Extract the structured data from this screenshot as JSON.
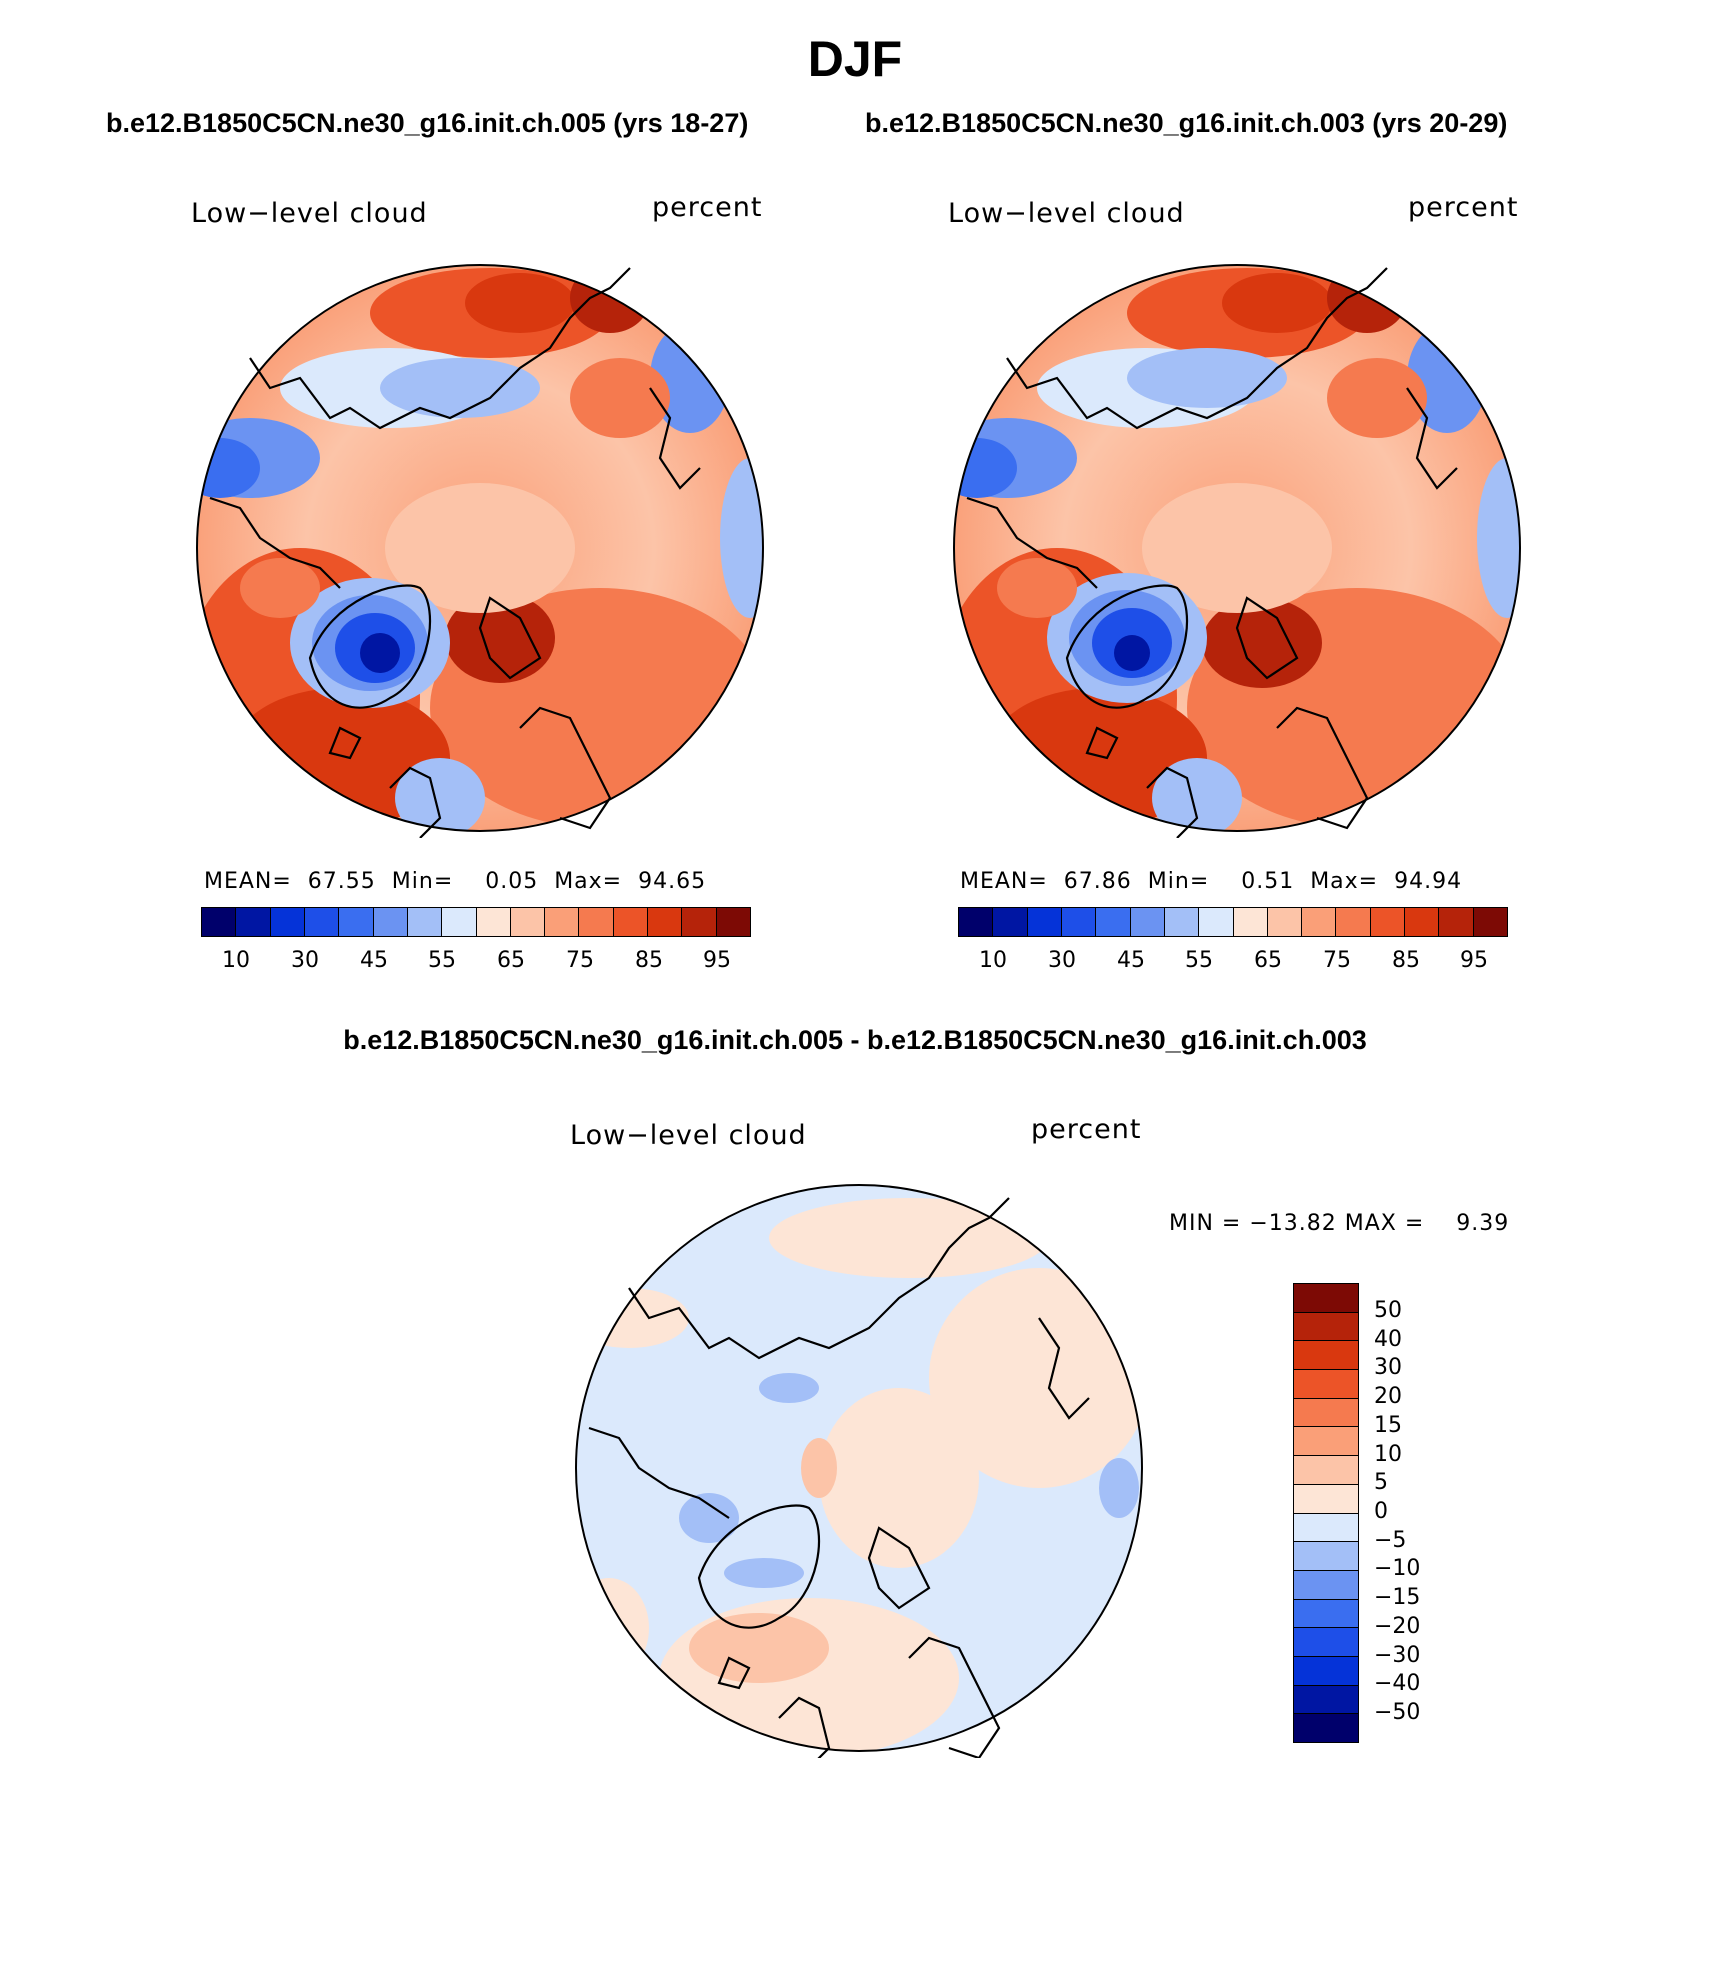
{
  "figure": {
    "title": "DJF",
    "case_a": "b.e12.B1850C5CN.ne30_g16.init.ch.005 (yrs 18-27)",
    "case_b": "b.e12.B1850C5CN.ne30_g16.init.ch.003 (yrs 20-29)",
    "diff_title": "b.e12.B1850C5CN.ne30_g16.init.ch.005 - b.e12.B1850C5CN.ne30_g16.init.ch.003"
  },
  "panels": [
    {
      "variable": "Low−level cloud",
      "units": "percent",
      "stats": "MEAN=  67.55  Min=    0.05  Max=  94.65"
    },
    {
      "variable": "Low−level cloud",
      "units": "percent",
      "stats": "MEAN=  67.86  Min=    0.51  Max=  94.94"
    },
    {
      "variable": "Low−level cloud",
      "units": "percent",
      "stats": "MIN = −13.82 MAX =    9.39"
    }
  ],
  "colors": {
    "abs_palette": [
      "#00006b",
      "#0016a3",
      "#0533d8",
      "#1e4fe8",
      "#3a6ef0",
      "#6b93f2",
      "#a3bff7",
      "#dbe9fc",
      "#fde5d6",
      "#fcc4a8",
      "#fa9f78",
      "#f57a4f",
      "#ec5428",
      "#d9380f",
      "#b5230a",
      "#7d0a05"
    ],
    "diff_palette": [
      "#7d0a05",
      "#b5230a",
      "#d9380f",
      "#ec5428",
      "#f57a4f",
      "#fa9f78",
      "#fcc4a8",
      "#fde5d6",
      "#dbe9fc",
      "#a3bff7",
      "#6b93f2",
      "#3a6ef0",
      "#1e4fe8",
      "#0533d8",
      "#0016a3",
      "#00006b"
    ]
  },
  "chart_data": [
    {
      "type": "heatmap",
      "projection": "north polar stereographic",
      "title": "Low−level cloud",
      "units": "percent",
      "case": "b.e12.B1850C5CN.ne30_g16.init.ch.005 (yrs 18-27)",
      "mean": 67.55,
      "min": 0.05,
      "max": 94.65,
      "colorbar_ticks": [
        "10",
        "30",
        "45",
        "55",
        "65",
        "75",
        "85",
        "95"
      ]
    },
    {
      "type": "heatmap",
      "projection": "north polar stereographic",
      "title": "Low−level cloud",
      "units": "percent",
      "case": "b.e12.B1850C5CN.ne30_g16.init.ch.003 (yrs 20-29)",
      "mean": 67.86,
      "min": 0.51,
      "max": 94.94,
      "colorbar_ticks": [
        "10",
        "30",
        "45",
        "55",
        "65",
        "75",
        "85",
        "95"
      ]
    },
    {
      "type": "heatmap",
      "projection": "north polar stereographic",
      "title": "Low−level cloud",
      "units": "percent",
      "case": "b.e12.B1850C5CN.ne30_g16.init.ch.005 - b.e12.B1850C5CN.ne30_g16.init.ch.003",
      "min": -13.82,
      "max": 9.39,
      "colorbar_ticks": [
        "50",
        "40",
        "30",
        "20",
        "15",
        "10",
        "5",
        "0",
        "−5",
        "−10",
        "−15",
        "−20",
        "−30",
        "−40",
        "−50"
      ]
    }
  ]
}
